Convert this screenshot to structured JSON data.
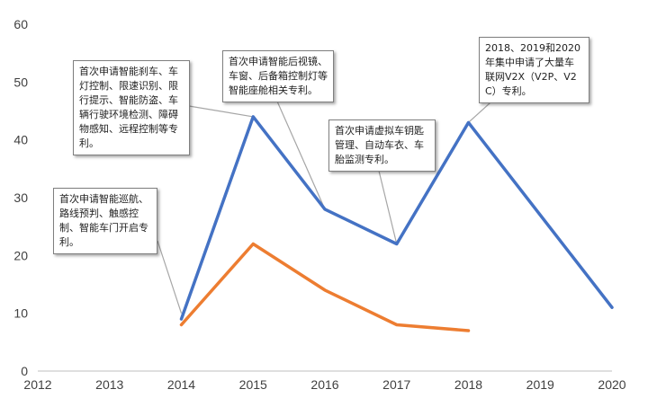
{
  "chart_data": {
    "type": "line",
    "title": "",
    "xlabel": "",
    "ylabel": "",
    "x": [
      2012,
      2013,
      2014,
      2015,
      2016,
      2017,
      2018,
      2019,
      2020
    ],
    "xlim": [
      2012,
      2020
    ],
    "ylim": [
      0,
      60
    ],
    "yticks": [
      0,
      10,
      20,
      30,
      40,
      50,
      60
    ],
    "grid": false,
    "legend": "none",
    "series": [
      {
        "color": "#4472c4",
        "points": [
          [
            2014,
            9
          ],
          [
            2015,
            44
          ],
          [
            2016,
            28
          ],
          [
            2017,
            22
          ],
          [
            2018,
            43
          ],
          [
            2020,
            11
          ]
        ]
      },
      {
        "color": "#ed7d31",
        "points": [
          [
            2014,
            8
          ],
          [
            2015,
            22
          ],
          [
            2016,
            14
          ],
          [
            2017,
            8
          ],
          [
            2018,
            7
          ]
        ]
      }
    ],
    "annotations": [
      {
        "text": "首次申请智能巡航、路线预判、触感控制、智能车门开启专利。",
        "x": 2014,
        "y": 10
      },
      {
        "text": "首次申请智能刹车、车灯控制、限速识别、限行提示、智能防盗、车辆行驶环境检测、障碍物感知、远程控制等专利。",
        "x": 2015,
        "y": 44
      },
      {
        "text": "首次申请智能后视镜、车窗、后备箱控制灯等智能座舱相关专利。",
        "x": 2016,
        "y": 28
      },
      {
        "text": "首次申请虚拟车钥匙管理、自动车衣、车胎监测专利。",
        "x": 2017,
        "y": 22
      },
      {
        "text": "2018、2019和2020年集中申请了大量车联网V2X（V2P、V2C）专利。",
        "x": 2018,
        "y": 43
      }
    ]
  }
}
